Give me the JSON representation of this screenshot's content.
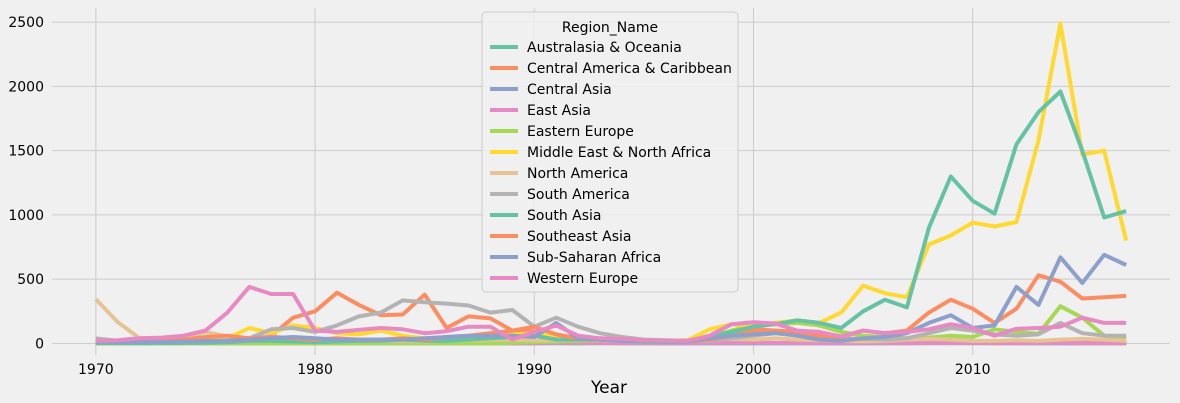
{
  "chart_data": {
    "type": "line",
    "xlabel": "Year",
    "ylabel": "",
    "xlim": [
      1968,
      2019
    ],
    "ylim": [
      -90,
      2610
    ],
    "xticks": [
      1970,
      1980,
      1990,
      2000,
      2010
    ],
    "yticks": [
      0,
      500,
      1000,
      1500,
      2000,
      2500
    ],
    "grid": true,
    "legend": {
      "title": "Region_Name",
      "placement": "top-center"
    },
    "x": [
      1970,
      1971,
      1972,
      1973,
      1974,
      1975,
      1976,
      1977,
      1978,
      1979,
      1980,
      1981,
      1982,
      1983,
      1984,
      1985,
      1986,
      1987,
      1988,
      1989,
      1990,
      1991,
      1992,
      1993,
      1994,
      1995,
      1996,
      1997,
      1998,
      1999,
      2000,
      2001,
      2002,
      2003,
      2004,
      2005,
      2006,
      2007,
      2008,
      2009,
      2010,
      2011,
      2012,
      2013,
      2014,
      2015,
      2016,
      2017
    ],
    "series": [
      {
        "name": "Australasia & Oceania",
        "color": "#66c2a5",
        "values": [
          1,
          1,
          0,
          1,
          0,
          1,
          0,
          1,
          1,
          2,
          1,
          1,
          0,
          1,
          1,
          1,
          0,
          1,
          1,
          1,
          1,
          1,
          0,
          1,
          1,
          0,
          1,
          1,
          1,
          1,
          1,
          1,
          1,
          2,
          1,
          1,
          1,
          2,
          2,
          1,
          2,
          1,
          1,
          2,
          2,
          1,
          1,
          1
        ]
      },
      {
        "name": "Central America & Caribbean",
        "color": "#fc8d62",
        "values": [
          2,
          5,
          6,
          8,
          10,
          12,
          15,
          25,
          60,
          200,
          250,
          395,
          300,
          220,
          225,
          380,
          120,
          210,
          195,
          100,
          95,
          35,
          25,
          20,
          15,
          10,
          8,
          5,
          40,
          80,
          110,
          100,
          60,
          45,
          30,
          25,
          15,
          10,
          8,
          6,
          5,
          4,
          3,
          3,
          3,
          2,
          2,
          2
        ]
      },
      {
        "name": "Central Asia",
        "color": "#8da0cb",
        "values": [
          1,
          1,
          1,
          1,
          1,
          1,
          1,
          1,
          1,
          1,
          1,
          1,
          1,
          1,
          1,
          1,
          1,
          1,
          1,
          1,
          2,
          3,
          5,
          4,
          3,
          3,
          2,
          2,
          1,
          1,
          2,
          2,
          2,
          2,
          1,
          2,
          2,
          3,
          3,
          4,
          5,
          5,
          3,
          2,
          2,
          2,
          1,
          1
        ]
      },
      {
        "name": "East Asia",
        "color": "#e78ac3",
        "values": [
          2,
          3,
          2,
          3,
          2,
          3,
          3,
          2,
          3,
          2,
          2,
          3,
          2,
          3,
          2,
          3,
          2,
          3,
          4,
          2,
          3,
          4,
          3,
          3,
          2,
          3,
          2,
          3,
          4,
          5,
          6,
          4,
          3,
          3,
          2,
          4,
          3,
          2,
          3,
          4,
          3,
          2,
          2,
          3,
          4,
          3,
          2,
          2
        ]
      },
      {
        "name": "Eastern Europe",
        "color": "#a6d854",
        "values": [
          0,
          0,
          0,
          0,
          0,
          0,
          0,
          0,
          0,
          0,
          0,
          0,
          0,
          0,
          0,
          0,
          0,
          0,
          0,
          5,
          10,
          15,
          20,
          25,
          20,
          15,
          10,
          15,
          50,
          100,
          140,
          150,
          160,
          140,
          90,
          60,
          50,
          40,
          45,
          60,
          50,
          110,
          90,
          75,
          290,
          200,
          60,
          40
        ]
      },
      {
        "name": "Middle East & North Africa",
        "color": "#ffd92f",
        "values": [
          1,
          5,
          10,
          15,
          20,
          25,
          40,
          120,
          80,
          140,
          120,
          80,
          70,
          100,
          60,
          40,
          40,
          40,
          60,
          70,
          80,
          60,
          45,
          35,
          25,
          20,
          20,
          25,
          110,
          150,
          130,
          160,
          180,
          160,
          240,
          450,
          390,
          360,
          770,
          840,
          940,
          910,
          945,
          1580,
          2490,
          1470,
          1500,
          800
        ]
      },
      {
        "name": "North America",
        "color": "#e5c494",
        "values": [
          345,
          165,
          40,
          40,
          40,
          90,
          55,
          40,
          60,
          30,
          25,
          30,
          25,
          20,
          20,
          15,
          20,
          25,
          30,
          30,
          25,
          25,
          30,
          25,
          20,
          20,
          25,
          25,
          30,
          35,
          30,
          40,
          30,
          25,
          20,
          15,
          20,
          30,
          35,
          30,
          20,
          20,
          25,
          20,
          30,
          35,
          30,
          20
        ]
      },
      {
        "name": "South America",
        "color": "#b3b3b3",
        "values": [
          40,
          20,
          15,
          15,
          15,
          15,
          25,
          40,
          110,
          120,
          90,
          140,
          210,
          240,
          335,
          320,
          310,
          295,
          240,
          260,
          130,
          200,
          130,
          80,
          50,
          30,
          25,
          15,
          20,
          40,
          60,
          80,
          70,
          50,
          40,
          35,
          30,
          40,
          80,
          120,
          100,
          70,
          60,
          70,
          160,
          80,
          60,
          60
        ]
      },
      {
        "name": "South Asia",
        "color": "#66c2a5",
        "values": [
          2,
          2,
          2,
          3,
          4,
          5,
          10,
          20,
          20,
          15,
          10,
          15,
          20,
          20,
          30,
          20,
          20,
          30,
          40,
          50,
          60,
          30,
          30,
          30,
          20,
          15,
          10,
          15,
          50,
          90,
          130,
          150,
          180,
          160,
          120,
          250,
          340,
          280,
          900,
          1300,
          1110,
          1010,
          1550,
          1800,
          1960,
          1500,
          980,
          1030
        ]
      },
      {
        "name": "Southeast Asia",
        "color": "#fc8d62",
        "values": [
          10,
          10,
          15,
          20,
          30,
          50,
          60,
          40,
          50,
          40,
          30,
          40,
          30,
          30,
          40,
          30,
          50,
          60,
          80,
          100,
          130,
          70,
          40,
          30,
          30,
          20,
          20,
          15,
          30,
          60,
          80,
          100,
          90,
          60,
          50,
          100,
          80,
          100,
          240,
          340,
          270,
          160,
          270,
          530,
          480,
          350,
          360,
          370
        ]
      },
      {
        "name": "Sub-Saharan Africa",
        "color": "#8da0cb",
        "values": [
          10,
          10,
          10,
          10,
          15,
          20,
          20,
          30,
          40,
          50,
          40,
          30,
          30,
          30,
          30,
          40,
          50,
          60,
          60,
          60,
          50,
          160,
          40,
          30,
          20,
          20,
          15,
          15,
          40,
          60,
          70,
          80,
          60,
          30,
          20,
          40,
          50,
          80,
          160,
          220,
          120,
          140,
          440,
          300,
          670,
          470,
          690,
          610
        ]
      },
      {
        "name": "Western Europe",
        "color": "#e78ac3",
        "values": [
          20,
          25,
          40,
          45,
          60,
          100,
          240,
          440,
          385,
          385,
          100,
          90,
          105,
          120,
          110,
          80,
          95,
          130,
          130,
          30,
          90,
          140,
          60,
          40,
          35,
          25,
          20,
          20,
          60,
          150,
          165,
          155,
          100,
          90,
          55,
          100,
          80,
          90,
          110,
          150,
          120,
          60,
          115,
          120,
          130,
          200,
          160,
          160
        ]
      }
    ]
  }
}
